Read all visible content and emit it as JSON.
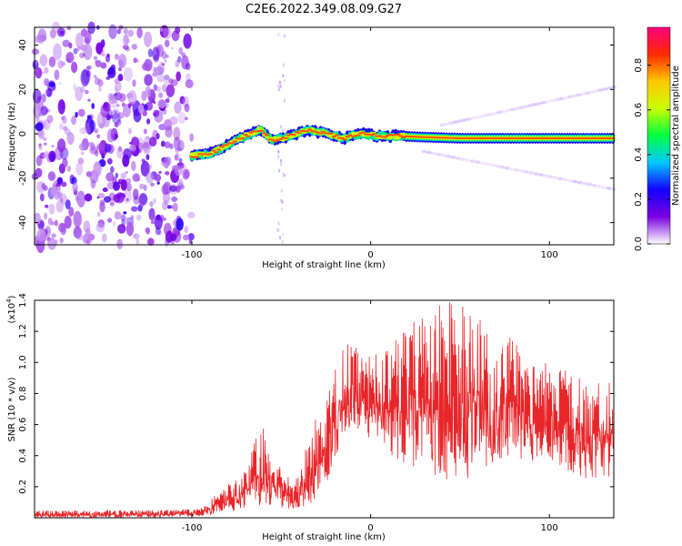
{
  "figure": {
    "title": "C2E6.2022.349.08.09.G27"
  },
  "chart_data": [
    {
      "type": "heatmap",
      "xlabel": "Height of straight line (km)",
      "ylabel": "Frequency (Hz)",
      "xlim": [
        -188,
        136
      ],
      "ylim": [
        -50,
        48
      ],
      "x_ticks": [
        -100,
        0,
        100
      ],
      "x_tick_labels": [
        "-100",
        "0",
        "100"
      ],
      "y_ticks": [
        -40,
        -20,
        0,
        20,
        40
      ],
      "y_tick_labels": [
        "-40",
        "-20",
        "0",
        "20",
        "40"
      ],
      "colorbar": {
        "label": "Normalized spectral amplitude",
        "range": [
          0,
          0.97
        ],
        "ticks": [
          0.0,
          0.2,
          0.4,
          0.6,
          0.8
        ],
        "tick_labels": [
          "0.0",
          "0.2",
          "0.4",
          "0.6",
          "0.8"
        ],
        "colors": [
          "#ffffff",
          "#7a00e0",
          "#1500ff",
          "#00c8ff",
          "#00ff40",
          "#c8ff00",
          "#ffc800",
          "#ff2a00",
          "#ff0080"
        ]
      },
      "noise_region_x": [
        -188,
        -100
      ],
      "main_line": {
        "description_points_x": [
          -100,
          -90,
          -80,
          -70,
          -62,
          -55,
          -45,
          -35,
          -25,
          -15,
          -5,
          5,
          15,
          30,
          50,
          70,
          90,
          110,
          136
        ],
        "frequency_hz": [
          -10,
          -9,
          -5,
          -1,
          2,
          -3,
          -1,
          2,
          0,
          -2,
          0,
          -1,
          -1,
          -1.5,
          -2,
          -2,
          -2,
          -2,
          -2
        ]
      },
      "harmonic_upper": {
        "x": [
          40,
          136
        ],
        "frequency_hz": [
          4,
          21
        ]
      },
      "harmonic_lower": {
        "x": [
          30,
          136
        ],
        "frequency_hz": [
          -8,
          -25
        ]
      }
    },
    {
      "type": "line",
      "xlabel": "Height of straight line (km)",
      "ylabel": "SNR (10 * v/v)",
      "y_scale_label": "(x10",
      "y_scale_exp": "4",
      "y_scale_suffix": ")",
      "xlim": [
        -188,
        136
      ],
      "ylim": [
        0,
        1.4
      ],
      "x_ticks": [
        -100,
        0,
        100
      ],
      "x_tick_labels": [
        "-100",
        "0",
        "100"
      ],
      "y_ticks": [
        0.2,
        0.4,
        0.6,
        0.8,
        1.0,
        1.2,
        1.4
      ],
      "y_tick_labels": [
        "0.2",
        "0.4",
        "0.6",
        "0.8",
        "1.0",
        "1.2",
        "1.4"
      ],
      "line_color": "#e8262a",
      "envelope": {
        "x": [
          -188,
          -120,
          -95,
          -90,
          -85,
          -80,
          -75,
          -70,
          -65,
          -60,
          -55,
          -50,
          -45,
          -40,
          -35,
          -30,
          -25,
          -20,
          -15,
          -10,
          -5,
          0,
          10,
          20,
          30,
          40,
          50,
          60,
          70,
          80,
          90,
          100,
          110,
          120,
          136
        ],
        "upper": [
          0.05,
          0.05,
          0.06,
          0.12,
          0.17,
          0.22,
          0.27,
          0.35,
          0.5,
          0.6,
          0.4,
          0.35,
          0.25,
          0.3,
          0.5,
          0.7,
          0.75,
          1.0,
          1.1,
          1.15,
          1.05,
          1.05,
          1.1,
          1.25,
          1.3,
          1.4,
          1.4,
          1.35,
          1.2,
          1.15,
          1.0,
          1.0,
          0.95,
          0.9,
          0.88
        ],
        "lower": [
          0.0,
          0.0,
          0.01,
          0.02,
          0.03,
          0.04,
          0.05,
          0.06,
          0.07,
          0.08,
          0.07,
          0.06,
          0.05,
          0.05,
          0.08,
          0.12,
          0.2,
          0.35,
          0.55,
          0.6,
          0.55,
          0.5,
          0.4,
          0.35,
          0.3,
          0.25,
          0.2,
          0.3,
          0.35,
          0.4,
          0.35,
          0.35,
          0.3,
          0.25,
          0.25
        ]
      }
    }
  ]
}
